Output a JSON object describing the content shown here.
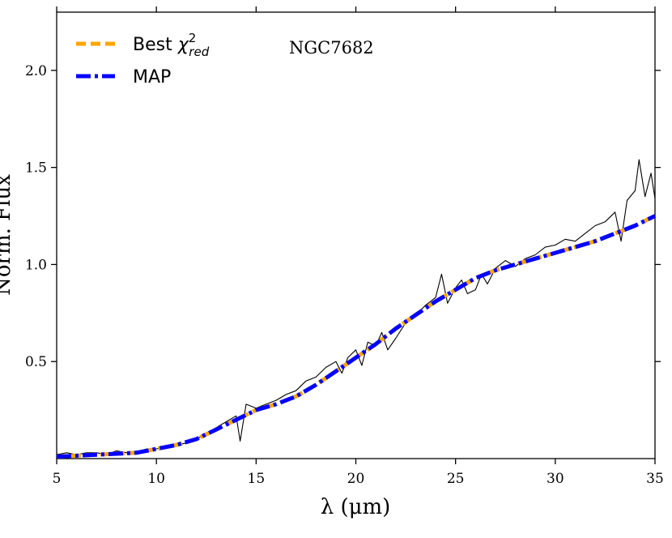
{
  "chart_data": {
    "type": "line",
    "title": "",
    "annotation": "NGC7682",
    "xlabel": "λ (μm)",
    "ylabel": "Norm. Flux",
    "xlim": [
      5,
      35
    ],
    "ylim": [
      0,
      2.3
    ],
    "xticks": [
      5,
      10,
      15,
      20,
      25,
      30,
      35
    ],
    "xtick_labels": [
      "5",
      "10",
      "15",
      "20",
      "25",
      "30",
      "35"
    ],
    "yticks": [
      0.5,
      1.0,
      1.5,
      2.0
    ],
    "ytick_labels": [
      "0.5",
      "1.0",
      "1.5",
      "2.0"
    ],
    "legend_position": "top-left",
    "legend": [
      {
        "label_main": "Best ",
        "label_sym": "χ",
        "label_sup": "2",
        "label_sub": "red",
        "color": "#FFA500",
        "style": "dashed"
      },
      {
        "label_main": "MAP",
        "label_sym": "",
        "label_sup": "",
        "label_sub": "",
        "color": "#0000FF",
        "style": "dashdot"
      }
    ],
    "series": [
      {
        "name": "observed spectrum",
        "color": "#000000",
        "x": [
          5.0,
          5.5,
          6.0,
          6.5,
          7.0,
          7.5,
          8.0,
          8.5,
          9.0,
          9.5,
          10.0,
          10.5,
          11.0,
          11.5,
          12.0,
          12.5,
          13.0,
          13.5,
          14.0,
          14.2,
          14.5,
          15.0,
          15.5,
          16.0,
          16.5,
          17.0,
          17.5,
          18.0,
          18.5,
          19.0,
          19.3,
          19.6,
          20.0,
          20.3,
          20.6,
          21.0,
          21.3,
          21.6,
          22.0,
          22.5,
          23.0,
          23.5,
          24.0,
          24.3,
          24.6,
          25.0,
          25.3,
          25.6,
          26.0,
          26.3,
          26.6,
          27.0,
          27.5,
          28.0,
          28.5,
          29.0,
          29.5,
          30.0,
          30.5,
          31.0,
          31.5,
          32.0,
          32.5,
          33.0,
          33.3,
          33.6,
          34.0,
          34.2,
          34.5,
          34.8,
          35.0
        ],
        "y": [
          0.02,
          0.03,
          0.02,
          0.03,
          0.03,
          0.02,
          0.04,
          0.03,
          0.03,
          0.05,
          0.05,
          0.06,
          0.07,
          0.08,
          0.1,
          0.13,
          0.16,
          0.19,
          0.22,
          0.09,
          0.28,
          0.26,
          0.28,
          0.3,
          0.33,
          0.35,
          0.4,
          0.42,
          0.47,
          0.5,
          0.44,
          0.52,
          0.56,
          0.48,
          0.6,
          0.58,
          0.65,
          0.56,
          0.62,
          0.7,
          0.74,
          0.79,
          0.83,
          0.95,
          0.8,
          0.88,
          0.92,
          0.85,
          0.87,
          0.95,
          0.9,
          0.98,
          1.02,
          0.99,
          1.03,
          1.05,
          1.09,
          1.1,
          1.13,
          1.12,
          1.16,
          1.2,
          1.22,
          1.27,
          1.12,
          1.33,
          1.38,
          1.54,
          1.35,
          1.47,
          1.34
        ]
      },
      {
        "name": "Best χ²_red",
        "color": "#FFA500",
        "x": [
          5,
          7,
          9,
          10,
          11,
          12,
          13,
          14,
          15,
          16,
          17,
          18,
          19,
          20,
          21,
          22,
          23,
          24,
          25,
          26,
          27,
          28,
          29,
          30,
          31,
          32,
          33,
          34,
          35
        ],
        "y": [
          0.01,
          0.02,
          0.03,
          0.05,
          0.07,
          0.1,
          0.15,
          0.2,
          0.25,
          0.28,
          0.32,
          0.38,
          0.45,
          0.52,
          0.59,
          0.67,
          0.74,
          0.81,
          0.87,
          0.93,
          0.97,
          1.0,
          1.03,
          1.06,
          1.09,
          1.12,
          1.16,
          1.2,
          1.25
        ]
      },
      {
        "name": "MAP",
        "color": "#0000FF",
        "x": [
          5,
          7,
          9,
          10,
          11,
          12,
          13,
          14,
          15,
          16,
          17,
          18,
          19,
          20,
          21,
          22,
          23,
          24,
          25,
          26,
          27,
          28,
          29,
          30,
          31,
          32,
          33,
          34,
          35
        ],
        "y": [
          0.01,
          0.02,
          0.03,
          0.05,
          0.07,
          0.1,
          0.15,
          0.2,
          0.25,
          0.28,
          0.32,
          0.38,
          0.45,
          0.52,
          0.59,
          0.67,
          0.74,
          0.81,
          0.87,
          0.93,
          0.97,
          1.0,
          1.03,
          1.06,
          1.09,
          1.12,
          1.16,
          1.2,
          1.25
        ]
      }
    ]
  }
}
